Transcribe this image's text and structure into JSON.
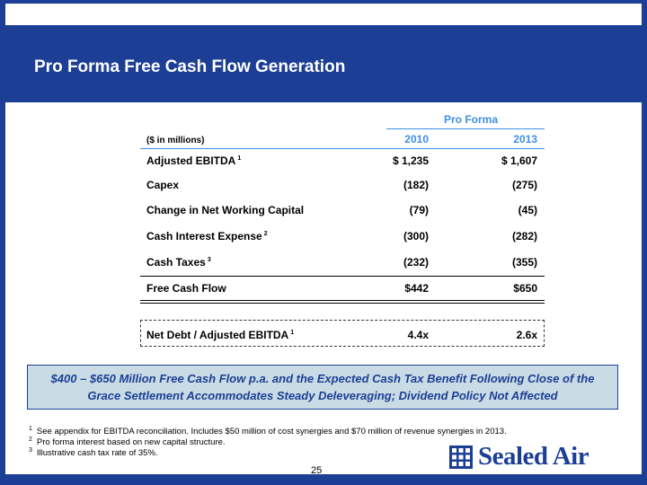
{
  "title": "Pro Forma Free Cash Flow Generation",
  "table": {
    "unit_label": "($ in millions)",
    "group_header": "Pro Forma",
    "col_2010": "2010",
    "col_2013": "2013",
    "rows": [
      {
        "label": "Adjusted EBITDA",
        "fn": "1",
        "v2010": "$ 1,235",
        "v2013": "$ 1,607"
      },
      {
        "label": "Capex",
        "fn": "",
        "v2010": "(182)",
        "v2013": "(275)"
      },
      {
        "label": "Change in Net Working Capital",
        "fn": "",
        "v2010": "(79)",
        "v2013": "(45)"
      },
      {
        "label": "Cash Interest Expense",
        "fn": "2",
        "v2010": "(300)",
        "v2013": "(282)"
      },
      {
        "label": "Cash Taxes",
        "fn": "3",
        "v2010": "(232)",
        "v2013": "(355)"
      }
    ],
    "fcf": {
      "label": "Free Cash Flow",
      "v2010": "$442",
      "v2013": "$650"
    },
    "net_debt": {
      "label": "Net Debt / Adjusted EBITDA",
      "fn": "1",
      "v2010": "4.4x",
      "v2013": "2.6x"
    }
  },
  "callout": "$400 – $650 Million Free Cash Flow p.a. and the Expected Cash Tax Benefit Following Close of the Grace Settlement Accommodates Steady Deleveraging; Dividend Policy Not Affected",
  "footnotes": [
    {
      "num": "1",
      "text": "See appendix for EBITDA reconciliation. Includes $50 million of cost synergies and $70 million of revenue synergies in 2013."
    },
    {
      "num": "2",
      "text": "Pro forma interest based on new capital structure."
    },
    {
      "num": "3",
      "text": "Illustrative cash tax rate of 35%."
    }
  ],
  "page_number": "25",
  "logo_text": "Sealed Air",
  "colors": {
    "brand_blue": "#1c3f95",
    "accent_blue": "#3f8fe8",
    "callout_bg": "#c9dbe4"
  }
}
